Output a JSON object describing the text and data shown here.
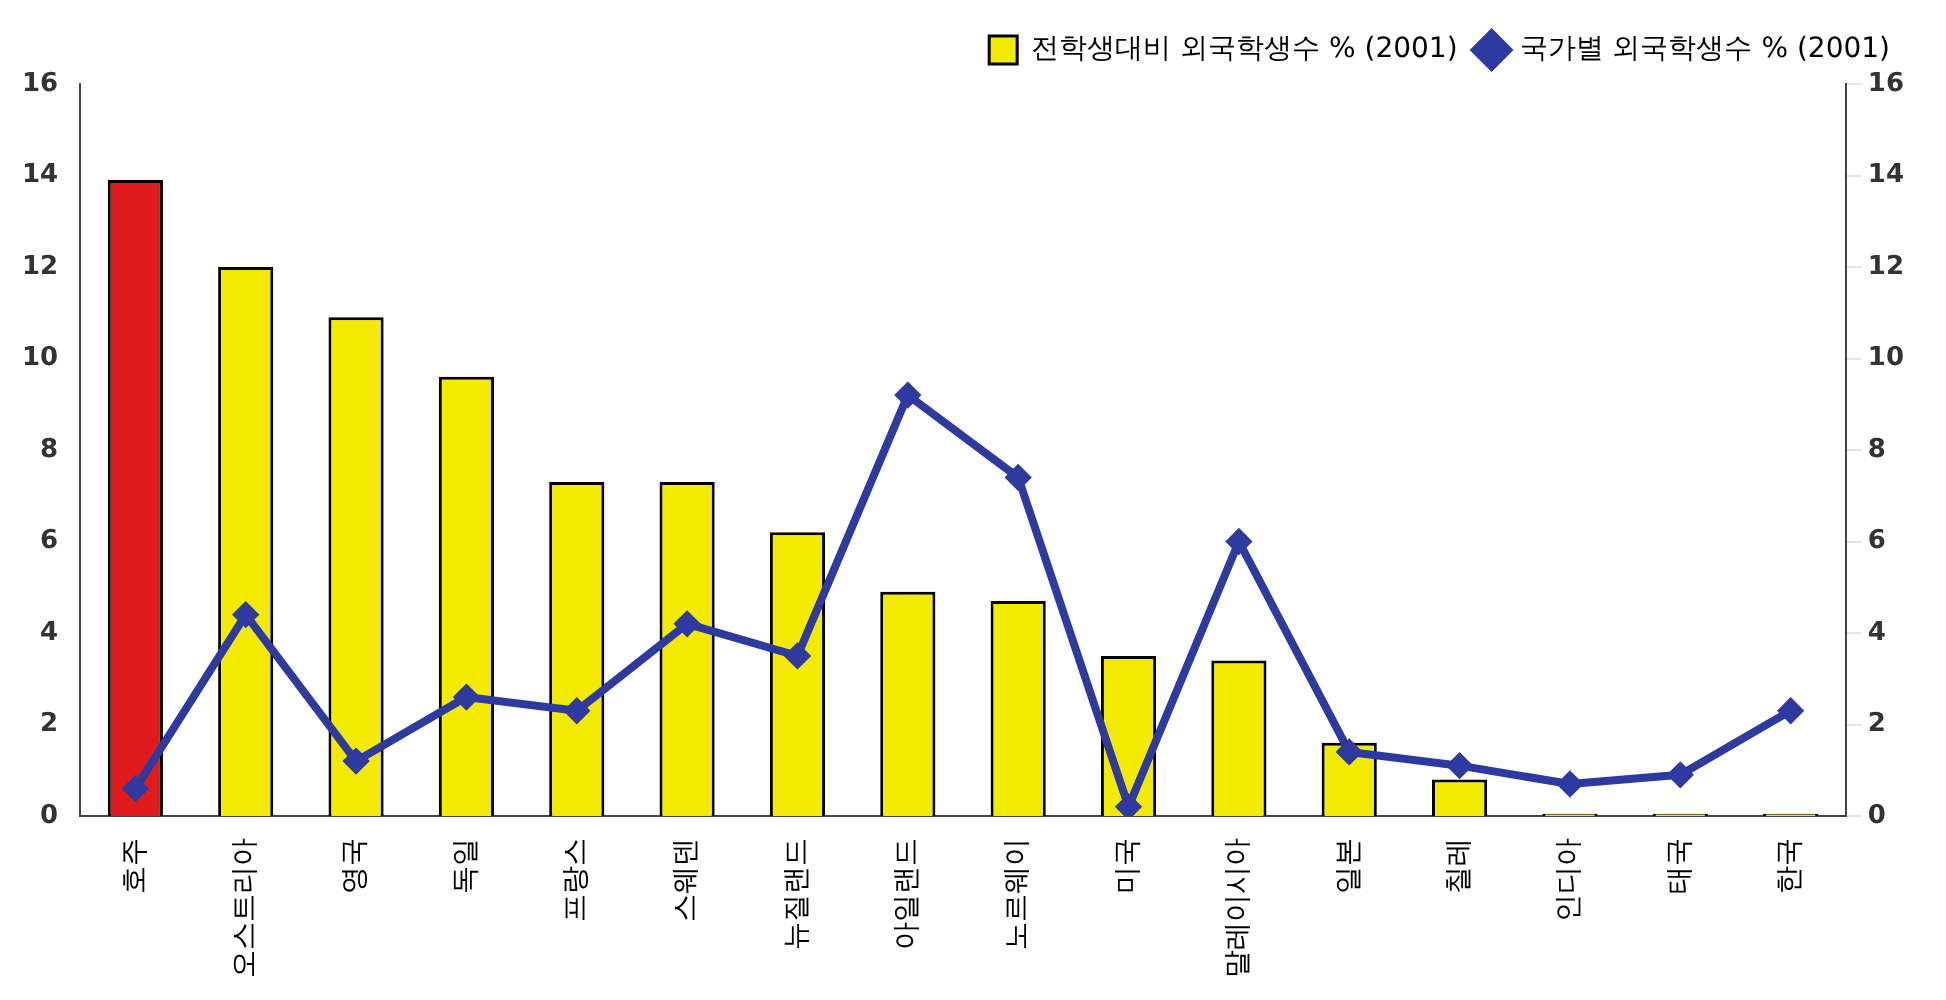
{
  "chart_data": {
    "type": "bar",
    "categories": [
      "호주",
      "오스트리아",
      "영국",
      "독일",
      "프랑스",
      "스웨덴",
      "뉴질랜드",
      "아일랜드",
      "노르웨이",
      "미국",
      "말레이시아",
      "일본",
      "칠레",
      "인디아",
      "태국",
      "한국"
    ],
    "series": [
      {
        "name": "전학생대비 외국학생수 % (2001)",
        "color": "#f2ea00",
        "colors": [
          "#e01b1b",
          "#f2ea00",
          "#f2ea00",
          "#f2ea00",
          "#f2ea00",
          "#f2ea00",
          "#f2ea00",
          "#f2ea00",
          "#f2ea00",
          "#f2ea00",
          "#f2ea00",
          "#f2ea00",
          "#f2ea00",
          "#f2ea00",
          "#f2ea00",
          "#f2ea00"
        ],
        "values": [
          13.9,
          12,
          10.9,
          9.6,
          7.3,
          7.3,
          6.2,
          4.9,
          4.7,
          3.5,
          3.4,
          1.6,
          0.8,
          0.05,
          0.05,
          0.05
        ]
      },
      {
        "name": "국가별 외국학생수 % (2001)",
        "type": "line",
        "color": "#2e3aa0",
        "values": [
          0.6,
          4.4,
          1.2,
          2.6,
          2.3,
          4.2,
          3.5,
          9.2,
          7.4,
          0.2,
          6.0,
          1.4,
          1.1,
          0.7,
          0.9,
          2.3
        ]
      }
    ],
    "ylim": [
      0,
      16
    ],
    "yticks": [
      0,
      2,
      4,
      6,
      8,
      10,
      12,
      14,
      16
    ],
    "y2lim": [
      0,
      16
    ],
    "y2ticks": [
      0,
      2,
      4,
      6,
      8,
      10,
      12,
      14,
      16
    ],
    "grid": false,
    "legend": "top right",
    "marker": "diamond",
    "line_style": "solid"
  }
}
